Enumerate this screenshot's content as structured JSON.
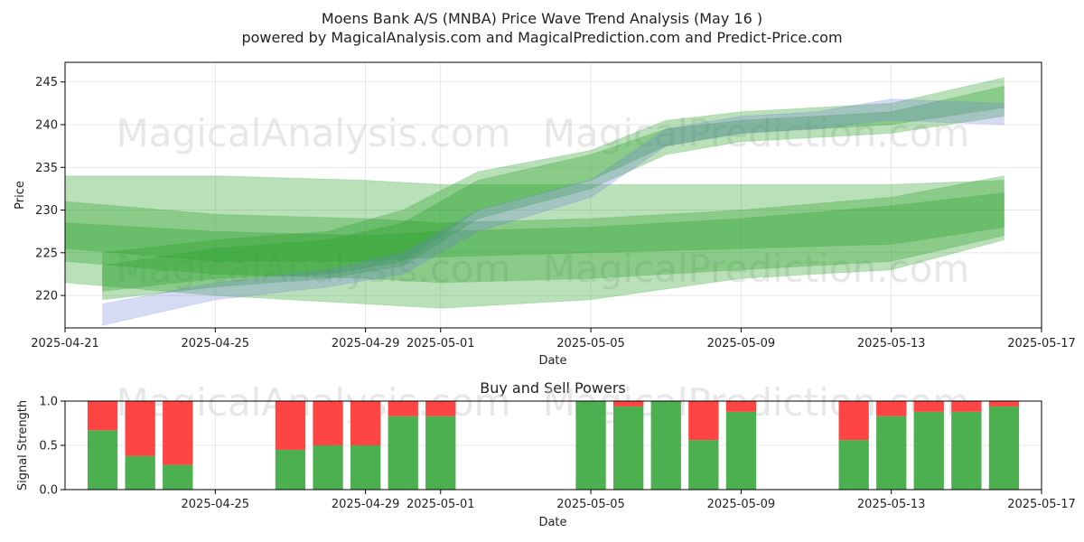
{
  "header": {
    "title": "Moens Bank A/S (MNBA) Price Wave Trend Analysis (May 16 )",
    "subtitle": "powered by MagicalAnalysis.com and MagicalPrediction.com and Predict-Price.com"
  },
  "watermarks": [
    "MagicalAnalysis.com",
    "MagicalPrediction.com"
  ],
  "chart_data": [
    {
      "type": "area",
      "title": "",
      "xlabel": "Date",
      "ylabel": "Price",
      "xlim": [
        "2025-04-21",
        "2025-05-17"
      ],
      "ylim": [
        216.2,
        247.3
      ],
      "grid": true,
      "x_ticks": [
        "2025-04-21",
        "2025-04-25",
        "2025-04-29",
        "2025-05-01",
        "2025-05-05",
        "2025-05-09",
        "2025-05-13",
        "2025-05-17"
      ],
      "y_ticks": [
        220,
        225,
        230,
        235,
        240,
        245
      ],
      "colors": {
        "green_band": "#2ca02c",
        "blue_band": "#6b7fd6"
      },
      "series": [
        {
          "name": "green_wave_upper_1",
          "color": "green",
          "x": [
            "2025-04-21",
            "2025-04-25",
            "2025-04-29",
            "2025-05-01",
            "2025-05-05",
            "2025-05-09",
            "2025-05-13",
            "2025-05-16"
          ],
          "lower": [
            221.5,
            220.0,
            219.0,
            218.5,
            219.5,
            222.0,
            223.0,
            226.5
          ],
          "upper": [
            234.0,
            234.0,
            233.5,
            233.0,
            233.0,
            233.0,
            233.0,
            233.5
          ]
        },
        {
          "name": "green_wave_upper_2",
          "color": "green",
          "x": [
            "2025-04-21",
            "2025-04-25",
            "2025-04-29",
            "2025-05-01",
            "2025-05-05",
            "2025-05-09",
            "2025-05-13",
            "2025-05-16"
          ],
          "lower": [
            224.0,
            222.5,
            222.0,
            221.5,
            222.0,
            223.0,
            224.0,
            227.0
          ],
          "upper": [
            231.0,
            229.5,
            229.0,
            228.5,
            229.0,
            230.0,
            231.5,
            234.0
          ]
        },
        {
          "name": "green_wave_mid",
          "color": "green",
          "x": [
            "2025-04-21",
            "2025-04-25",
            "2025-04-29",
            "2025-05-01",
            "2025-05-05",
            "2025-05-09",
            "2025-05-13",
            "2025-05-16"
          ],
          "lower": [
            225.5,
            224.0,
            224.0,
            224.5,
            225.0,
            225.5,
            226.0,
            228.0
          ],
          "upper": [
            228.5,
            227.5,
            227.0,
            227.5,
            228.0,
            229.0,
            230.5,
            232.0
          ]
        },
        {
          "name": "green_trend_rise",
          "color": "green",
          "x": [
            "2025-04-22",
            "2025-04-25",
            "2025-04-28",
            "2025-04-30",
            "2025-05-02",
            "2025-05-05",
            "2025-05-07",
            "2025-05-09",
            "2025-05-11",
            "2025-05-13",
            "2025-05-16"
          ],
          "lower": [
            220.5,
            222.0,
            222.5,
            224.0,
            230.0,
            233.5,
            237.5,
            239.0,
            239.5,
            240.0,
            242.0
          ],
          "upper": [
            225.0,
            226.5,
            227.5,
            230.0,
            234.5,
            237.0,
            240.5,
            241.5,
            242.0,
            242.5,
            245.5
          ]
        },
        {
          "name": "green_trend_rise_2",
          "color": "green",
          "x": [
            "2025-04-22",
            "2025-04-25",
            "2025-04-28",
            "2025-04-30",
            "2025-05-02",
            "2025-05-05",
            "2025-05-07",
            "2025-05-09",
            "2025-05-11",
            "2025-05-13",
            "2025-05-16"
          ],
          "lower": [
            219.5,
            221.0,
            222.0,
            223.5,
            229.0,
            232.5,
            236.5,
            238.0,
            238.5,
            239.0,
            241.0
          ],
          "upper": [
            223.5,
            225.5,
            226.5,
            228.5,
            233.5,
            236.5,
            239.5,
            240.5,
            241.0,
            241.5,
            244.5
          ]
        },
        {
          "name": "blue_trend_rise",
          "color": "blue",
          "x": [
            "2025-04-22",
            "2025-04-25",
            "2025-04-28",
            "2025-04-30",
            "2025-05-02",
            "2025-05-05",
            "2025-05-07",
            "2025-05-09",
            "2025-05-11",
            "2025-05-13",
            "2025-05-16"
          ],
          "lower": [
            216.5,
            219.5,
            221.0,
            222.5,
            227.5,
            231.5,
            237.5,
            239.0,
            239.5,
            240.5,
            240.0
          ],
          "upper": [
            219.0,
            221.5,
            223.0,
            225.0,
            230.0,
            233.5,
            239.5,
            241.0,
            241.5,
            243.0,
            242.5
          ]
        }
      ]
    },
    {
      "type": "bar",
      "title": "Buy and Sell Powers",
      "xlabel": "Date",
      "ylabel": "Signal Strength",
      "xlim": [
        "2025-04-21",
        "2025-05-17"
      ],
      "ylim": [
        0,
        1
      ],
      "grid": true,
      "x_ticks": [
        "2025-04-25",
        "2025-04-29",
        "2025-05-01",
        "2025-05-05",
        "2025-05-09",
        "2025-05-13",
        "2025-05-17"
      ],
      "y_ticks": [
        "0.0",
        "0.5",
        "1.0"
      ],
      "colors": {
        "buy": "#4caf50",
        "sell": "#ff4444"
      },
      "categories": [
        "2025-04-22",
        "2025-04-23",
        "2025-04-24",
        "2025-04-27",
        "2025-04-28",
        "2025-04-29",
        "2025-04-30",
        "2025-05-01",
        "2025-05-05",
        "2025-05-06",
        "2025-05-07",
        "2025-05-08",
        "2025-05-09",
        "2025-05-12",
        "2025-05-13",
        "2025-05-14",
        "2025-05-15",
        "2025-05-16"
      ],
      "series": [
        {
          "name": "Buy",
          "values": [
            0.67,
            0.38,
            0.28,
            0.45,
            0.5,
            0.5,
            0.83,
            0.83,
            1.0,
            0.94,
            1.0,
            0.56,
            0.88,
            0.56,
            0.83,
            0.88,
            0.88,
            0.94
          ]
        },
        {
          "name": "Sell",
          "values": [
            0.33,
            0.62,
            0.72,
            0.55,
            0.5,
            0.5,
            0.17,
            0.17,
            0.0,
            0.06,
            0.0,
            0.44,
            0.12,
            0.44,
            0.17,
            0.12,
            0.12,
            0.06
          ]
        }
      ]
    }
  ]
}
